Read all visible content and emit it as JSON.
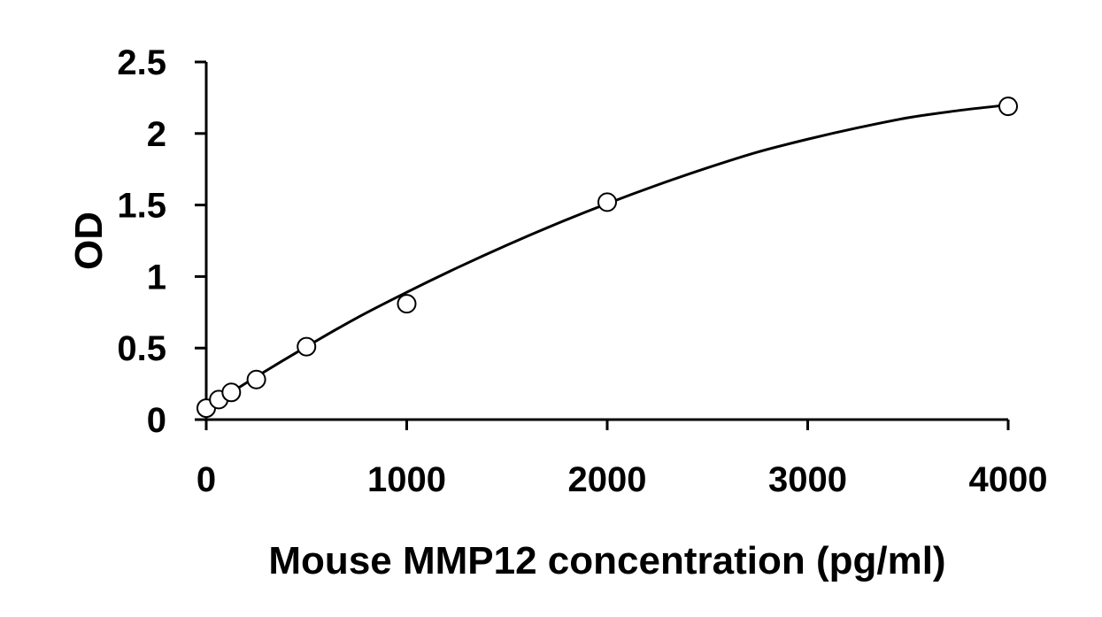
{
  "chart_data": {
    "type": "scatter",
    "title": "",
    "xlabel": "Mouse MMP12 concentration (pg/ml)",
    "ylabel": "OD",
    "xlim": [
      0,
      4000
    ],
    "ylim": [
      0,
      2.5
    ],
    "x_ticks": [
      "0",
      "1000",
      "2000",
      "3000",
      "4000"
    ],
    "y_ticks": [
      "0",
      "0.5",
      "1",
      "1.5",
      "2",
      "2.5"
    ],
    "grid": false,
    "legend": "none",
    "series": [
      {
        "points": [
          {
            "x": 0,
            "y": 0.08
          },
          {
            "x": 62.5,
            "y": 0.14
          },
          {
            "x": 125,
            "y": 0.19
          },
          {
            "x": 250,
            "y": 0.28
          },
          {
            "x": 500,
            "y": 0.51
          },
          {
            "x": 1000,
            "y": 0.81
          },
          {
            "x": 2000,
            "y": 1.52
          },
          {
            "x": 4000,
            "y": 2.19
          }
        ],
        "marker": "open-circle",
        "color": "#000000"
      }
    ],
    "fit_curve": {
      "type": "polynomial",
      "x": [
        0,
        250,
        500,
        750,
        1000,
        1250,
        1500,
        1750,
        2000,
        2250,
        2500,
        2750,
        3000,
        3250,
        3500,
        3750,
        4000
      ],
      "y": [
        0.08,
        0.3,
        0.51,
        0.71,
        0.89,
        1.06,
        1.22,
        1.37,
        1.51,
        1.64,
        1.76,
        1.87,
        1.96,
        2.04,
        2.11,
        2.16,
        2.2
      ],
      "color": "#000000"
    }
  }
}
